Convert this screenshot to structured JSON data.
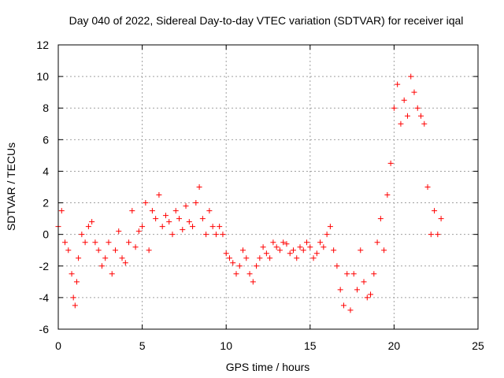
{
  "chart_data": {
    "type": "scatter",
    "title": "Day 040 of 2022, Sidereal Day-to-day VTEC variation (SDTVAR) for receiver iqal",
    "xlabel": "GPS time / hours",
    "ylabel": "SDTVAR / TECUs",
    "xlim": [
      0,
      25
    ],
    "ylim": [
      -6,
      12
    ],
    "xticks": [
      0,
      5,
      10,
      15,
      20,
      25
    ],
    "yticks": [
      -6,
      -4,
      -2,
      0,
      2,
      4,
      6,
      8,
      10,
      12
    ],
    "grid": true,
    "marker": "+",
    "color": "#ff0000",
    "series": [
      {
        "name": "SDTVAR",
        "x": [
          0.0,
          0.2,
          0.4,
          0.6,
          0.8,
          0.9,
          1.0,
          1.1,
          1.2,
          1.4,
          1.6,
          1.8,
          2.0,
          2.2,
          2.4,
          2.6,
          2.8,
          3.0,
          3.2,
          3.4,
          3.6,
          3.8,
          4.0,
          4.2,
          4.4,
          4.6,
          4.8,
          5.0,
          5.2,
          5.4,
          5.6,
          5.8,
          6.0,
          6.2,
          6.4,
          6.6,
          6.8,
          7.0,
          7.2,
          7.4,
          7.6,
          7.8,
          8.0,
          8.2,
          8.4,
          8.6,
          8.8,
          9.0,
          9.2,
          9.4,
          9.6,
          9.8,
          10.0,
          10.2,
          10.4,
          10.6,
          10.8,
          11.0,
          11.2,
          11.4,
          11.6,
          11.8,
          12.0,
          12.2,
          12.4,
          12.6,
          12.8,
          13.0,
          13.2,
          13.4,
          13.6,
          13.8,
          14.0,
          14.2,
          14.4,
          14.6,
          14.8,
          15.0,
          15.2,
          15.4,
          15.6,
          15.8,
          16.0,
          16.2,
          16.4,
          16.6,
          16.8,
          17.0,
          17.2,
          17.4,
          17.6,
          17.8,
          18.0,
          18.2,
          18.4,
          18.6,
          18.8,
          19.0,
          19.2,
          19.4,
          19.6,
          19.8,
          20.0,
          20.2,
          20.4,
          20.6,
          20.8,
          21.0,
          21.2,
          21.4,
          21.6,
          21.8,
          22.0,
          22.2,
          22.4,
          22.6,
          22.8
        ],
        "y": [
          0.5,
          1.5,
          -0.5,
          -1.0,
          -2.5,
          -4.0,
          -4.5,
          -3.0,
          -1.5,
          0.0,
          -0.5,
          0.5,
          0.8,
          -0.5,
          -1.0,
          -2.0,
          -1.5,
          -0.5,
          -2.5,
          -1.0,
          0.2,
          -1.5,
          -1.8,
          -0.5,
          1.5,
          -0.8,
          0.2,
          0.5,
          2.0,
          -1.0,
          1.5,
          1.0,
          2.5,
          0.5,
          1.2,
          0.8,
          0.0,
          1.5,
          1.0,
          0.3,
          1.8,
          0.8,
          0.5,
          2.0,
          3.0,
          1.0,
          0.0,
          1.5,
          0.5,
          0.0,
          0.5,
          0.0,
          -1.2,
          -1.5,
          -1.8,
          -2.5,
          -2.0,
          -1.0,
          -1.5,
          -2.5,
          -3.0,
          -2.0,
          -1.5,
          -0.8,
          -1.2,
          -1.5,
          -0.5,
          -0.8,
          -1.0,
          -0.5,
          -0.6,
          -1.2,
          -1.0,
          -1.5,
          -0.8,
          -1.0,
          -0.5,
          -0.8,
          -1.5,
          -1.2,
          -0.5,
          -0.8,
          0.0,
          0.5,
          -1.0,
          -2.0,
          -3.5,
          -4.5,
          -2.5,
          -4.8,
          -2.5,
          -3.5,
          -1.0,
          -3.0,
          -4.0,
          -3.8,
          -2.5,
          -0.5,
          1.0,
          -1.0,
          2.5,
          4.5,
          8.0,
          9.5,
          7.0,
          8.5,
          7.5,
          10.0,
          9.0,
          8.0,
          7.5,
          7.0,
          3.0,
          0.0,
          1.5,
          0.0,
          1.0
        ]
      }
    ]
  }
}
